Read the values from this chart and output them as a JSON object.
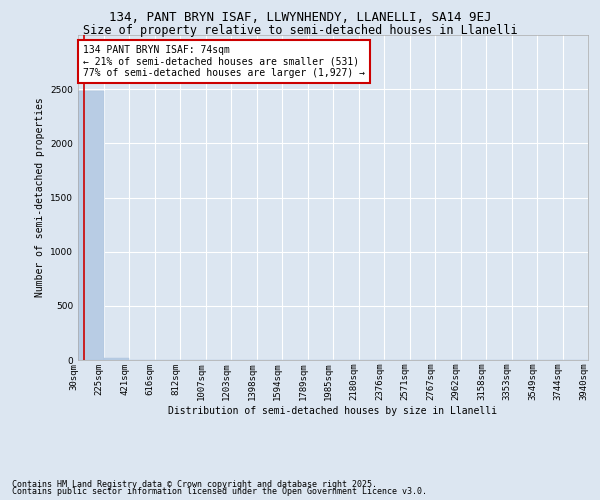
{
  "title": "134, PANT BRYN ISAF, LLWYNHENDY, LLANELLI, SA14 9EJ",
  "subtitle": "Size of property relative to semi-detached houses in Llanelli",
  "xlabel": "Distribution of semi-detached houses by size in Llanelli",
  "ylabel": "Number of semi-detached properties",
  "footnote1": "Contains HM Land Registry data © Crown copyright and database right 2025.",
  "footnote2": "Contains public sector information licensed under the Open Government Licence v3.0.",
  "bar_values": [
    2480,
    18,
    0,
    0,
    0,
    0,
    0,
    0,
    0,
    0,
    0,
    0,
    0,
    0,
    0,
    0,
    0,
    0,
    0,
    0
  ],
  "bar_color": "#b8cce4",
  "bar_edge_color": "#adc4df",
  "bin_labels": [
    "30sqm",
    "225sqm",
    "421sqm",
    "616sqm",
    "812sqm",
    "1007sqm",
    "1203sqm",
    "1398sqm",
    "1594sqm",
    "1789sqm",
    "1985sqm",
    "2180sqm",
    "2376sqm",
    "2571sqm",
    "2767sqm",
    "2962sqm",
    "3158sqm",
    "3353sqm",
    "3549sqm",
    "3744sqm",
    "3940sqm"
  ],
  "property_line_color": "#cc0000",
  "annotation_text": "134 PANT BRYN ISAF: 74sqm\n← 21% of semi-detached houses are smaller (531)\n77% of semi-detached houses are larger (1,927) →",
  "annotation_box_color": "#cc0000",
  "ylim": [
    0,
    3000
  ],
  "yticks": [
    0,
    500,
    1000,
    1500,
    2000,
    2500
  ],
  "background_color": "#dce6f1",
  "plot_background": "#dce6f1",
  "grid_color": "#ffffff",
  "title_fontsize": 9,
  "subtitle_fontsize": 8.5,
  "axis_label_fontsize": 7,
  "tick_fontsize": 6.5,
  "annotation_fontsize": 7
}
